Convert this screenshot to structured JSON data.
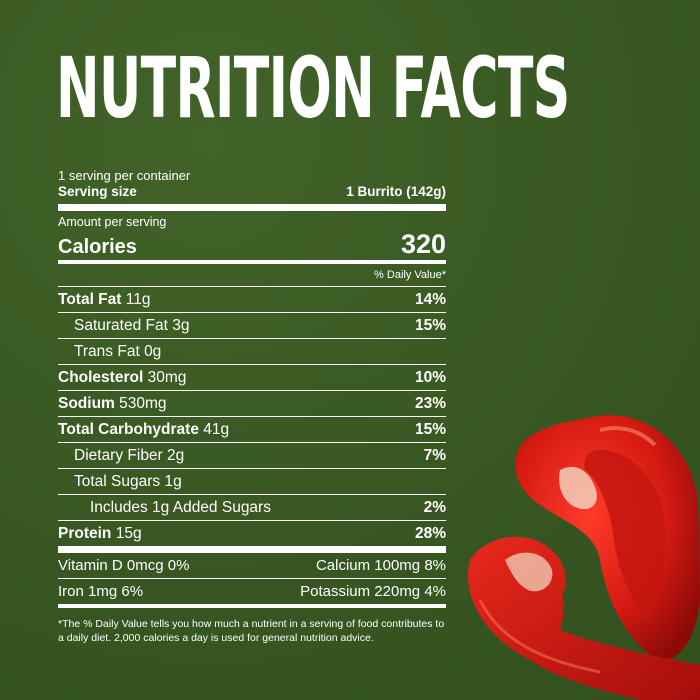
{
  "title": "NUTRITION FACTS",
  "servings_per_container": "1 serving per container",
  "serving_size": {
    "label": "Serving size",
    "value": "1 Burrito (142g)"
  },
  "amount_per_serving": "Amount per serving",
  "calories": {
    "label": "Calories",
    "value": "320"
  },
  "daily_value_header": "% Daily Value*",
  "nutrients": [
    {
      "name": "Total Fat",
      "amount": "11g",
      "dv": "14%"
    },
    {
      "name": "Saturated Fat",
      "amount": "3g",
      "dv": "15%"
    },
    {
      "name": "Trans Fat",
      "amount": "0g",
      "dv": ""
    },
    {
      "name": "Cholesterol",
      "amount": "30mg",
      "dv": "10%"
    },
    {
      "name": "Sodium",
      "amount": "530mg",
      "dv": "23%"
    },
    {
      "name": "Total Carbohydrate",
      "amount": "41g",
      "dv": "15%"
    },
    {
      "name": "Dietary Fiber",
      "amount": "2g",
      "dv": "7%"
    },
    {
      "name": "Total Sugars",
      "amount": "1g",
      "dv": ""
    },
    {
      "name": "Includes 1g Added Sugars",
      "amount": "",
      "dv": "2%"
    },
    {
      "name": "Protein",
      "amount": "15g",
      "dv": "28%"
    }
  ],
  "vitamins": [
    {
      "left": "Vitamin D 0mcg 0%",
      "right": "Calcium 100mg 8%"
    },
    {
      "left": "Iron 1mg 6%",
      "right": "Potassium 220mg 4%"
    }
  ],
  "footnote": "*The % Daily Value tells you how much a nutrient in a serving of food contributes to a daily diet. 2,000 calories a day is used for general nutrition advice.",
  "colors": {
    "background": "#3a5a23",
    "text": "#ffffff",
    "pepper": "#d01a12"
  }
}
